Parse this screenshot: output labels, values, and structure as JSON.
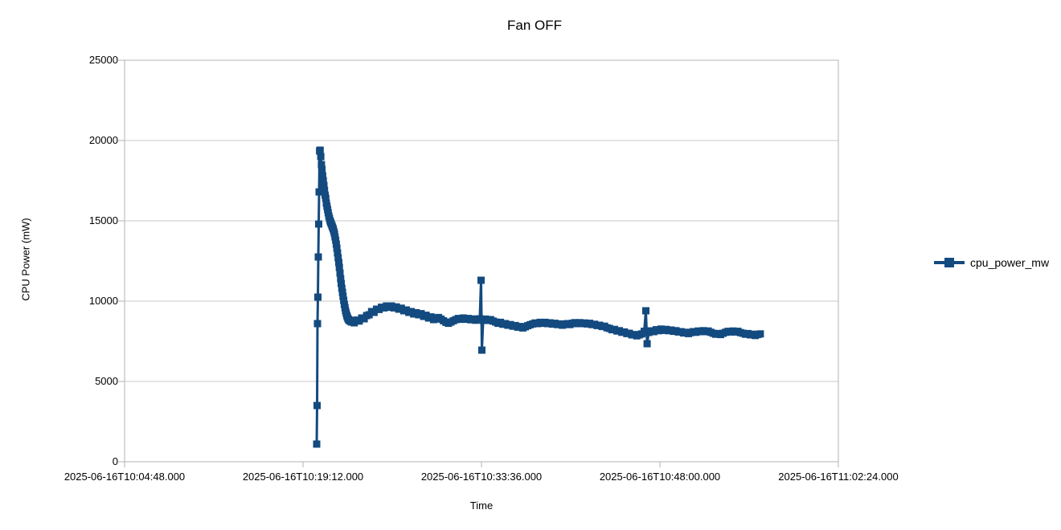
{
  "chart": {
    "title": "Fan OFF",
    "ylabel": "CPU Power (mW)",
    "xlabel": "Time",
    "legend_label": "cpu_power_mw",
    "colors": {
      "series": "#134a7f",
      "grid": "#c9c9c9",
      "axis": "#b3b3b3",
      "text": "#000000",
      "background": "#ffffff"
    }
  },
  "chart_data": {
    "type": "line",
    "title": "Fan OFF",
    "xlabel": "Time",
    "ylabel": "CPU Power (mW)",
    "legend": [
      "cpu_power_mw"
    ],
    "legend_position": "right",
    "marker": "square",
    "grid": "horizontal",
    "series_color": "#134a7f",
    "ylim": [
      0,
      25000
    ],
    "y_ticks": [
      0,
      5000,
      10000,
      15000,
      20000,
      25000
    ],
    "x_base_time": "2025-06-16T10:04:48.000",
    "x_tick_offsets_seconds": [
      0,
      864,
      1728,
      2592,
      3456
    ],
    "x_tick_labels": [
      "2025-06-16T10:04:48.000",
      "2025-06-16T10:19:12.000",
      "2025-06-16T10:33:36.000",
      "2025-06-16T10:48:00.000",
      "2025-06-16T11:02:24.000"
    ],
    "points_format": "[seconds_after_base_time, cpu_power_mw]",
    "points": [
      [
        930,
        1100
      ],
      [
        932,
        3500
      ],
      [
        934,
        8600
      ],
      [
        936,
        10250
      ],
      [
        938,
        12750
      ],
      [
        940,
        14800
      ],
      [
        942,
        16800
      ],
      [
        944,
        19350
      ],
      [
        947,
        19400
      ],
      [
        950,
        19000
      ],
      [
        953,
        18500
      ],
      [
        956,
        18200
      ],
      [
        959,
        17800
      ],
      [
        962,
        17500
      ],
      [
        965,
        17200
      ],
      [
        968,
        16900
      ],
      [
        971,
        16600
      ],
      [
        974,
        16400
      ],
      [
        977,
        16100
      ],
      [
        980,
        15900
      ],
      [
        983,
        15700
      ],
      [
        986,
        15500
      ],
      [
        989,
        15300
      ],
      [
        992,
        15150
      ],
      [
        995,
        15000
      ],
      [
        998,
        14900
      ],
      [
        1001,
        14800
      ],
      [
        1004,
        14700
      ],
      [
        1007,
        14600
      ],
      [
        1010,
        14500
      ],
      [
        1013,
        14350
      ],
      [
        1016,
        14200
      ],
      [
        1019,
        14000
      ],
      [
        1022,
        13800
      ],
      [
        1025,
        13550
      ],
      [
        1028,
        13300
      ],
      [
        1031,
        13000
      ],
      [
        1034,
        12700
      ],
      [
        1037,
        12400
      ],
      [
        1040,
        12100
      ],
      [
        1043,
        11750
      ],
      [
        1046,
        11400
      ],
      [
        1049,
        11100
      ],
      [
        1052,
        10800
      ],
      [
        1055,
        10550
      ],
      [
        1058,
        10300
      ],
      [
        1061,
        10050
      ],
      [
        1064,
        9800
      ],
      [
        1067,
        9600
      ],
      [
        1070,
        9400
      ],
      [
        1073,
        9250
      ],
      [
        1076,
        9100
      ],
      [
        1079,
        9000
      ],
      [
        1082,
        8900
      ],
      [
        1085,
        8850
      ],
      [
        1088,
        8800
      ],
      [
        1091,
        8780
      ],
      [
        1094,
        8760
      ],
      [
        1097,
        8730
      ],
      [
        1100,
        8700
      ],
      [
        1112,
        8650
      ],
      [
        1124,
        8820
      ],
      [
        1136,
        8760
      ],
      [
        1148,
        8950
      ],
      [
        1160,
        8900
      ],
      [
        1172,
        9100
      ],
      [
        1184,
        9150
      ],
      [
        1196,
        9350
      ],
      [
        1208,
        9300
      ],
      [
        1220,
        9500
      ],
      [
        1232,
        9480
      ],
      [
        1244,
        9620
      ],
      [
        1256,
        9580
      ],
      [
        1268,
        9700
      ],
      [
        1280,
        9620
      ],
      [
        1292,
        9700
      ],
      [
        1304,
        9580
      ],
      [
        1316,
        9640
      ],
      [
        1328,
        9500
      ],
      [
        1340,
        9560
      ],
      [
        1352,
        9400
      ],
      [
        1364,
        9450
      ],
      [
        1376,
        9300
      ],
      [
        1388,
        9350
      ],
      [
        1400,
        9200
      ],
      [
        1412,
        9280
      ],
      [
        1424,
        9150
      ],
      [
        1436,
        9220
      ],
      [
        1448,
        9050
      ],
      [
        1460,
        9120
      ],
      [
        1472,
        8950
      ],
      [
        1484,
        9020
      ],
      [
        1496,
        8850
      ],
      [
        1508,
        8920
      ],
      [
        1520,
        8980
      ],
      [
        1532,
        8880
      ],
      [
        1544,
        8780
      ],
      [
        1556,
        8680
      ],
      [
        1568,
        8620
      ],
      [
        1580,
        8700
      ],
      [
        1592,
        8780
      ],
      [
        1604,
        8850
      ],
      [
        1616,
        8920
      ],
      [
        1628,
        8870
      ],
      [
        1640,
        8950
      ],
      [
        1652,
        8870
      ],
      [
        1664,
        8920
      ],
      [
        1676,
        8840
      ],
      [
        1688,
        8890
      ],
      [
        1700,
        8810
      ],
      [
        1712,
        8870
      ],
      [
        1720,
        8900
      ],
      [
        1726,
        11300
      ],
      [
        1730,
        6950
      ],
      [
        1736,
        8800
      ],
      [
        1748,
        8880
      ],
      [
        1760,
        8800
      ],
      [
        1772,
        8850
      ],
      [
        1784,
        8760
      ],
      [
        1796,
        8700
      ],
      [
        1808,
        8620
      ],
      [
        1820,
        8680
      ],
      [
        1832,
        8560
      ],
      [
        1844,
        8600
      ],
      [
        1856,
        8500
      ],
      [
        1868,
        8540
      ],
      [
        1880,
        8440
      ],
      [
        1892,
        8480
      ],
      [
        1904,
        8380
      ],
      [
        1916,
        8420
      ],
      [
        1928,
        8330
      ],
      [
        1940,
        8400
      ],
      [
        1952,
        8470
      ],
      [
        1964,
        8530
      ],
      [
        1976,
        8580
      ],
      [
        1988,
        8640
      ],
      [
        2000,
        8600
      ],
      [
        2012,
        8680
      ],
      [
        2024,
        8620
      ],
      [
        2036,
        8680
      ],
      [
        2048,
        8600
      ],
      [
        2060,
        8650
      ],
      [
        2072,
        8570
      ],
      [
        2084,
        8620
      ],
      [
        2096,
        8540
      ],
      [
        2108,
        8580
      ],
      [
        2120,
        8500
      ],
      [
        2132,
        8560
      ],
      [
        2144,
        8600
      ],
      [
        2156,
        8540
      ],
      [
        2168,
        8620
      ],
      [
        2180,
        8660
      ],
      [
        2192,
        8600
      ],
      [
        2204,
        8660
      ],
      [
        2216,
        8600
      ],
      [
        2228,
        8640
      ],
      [
        2240,
        8580
      ],
      [
        2252,
        8620
      ],
      [
        2264,
        8540
      ],
      [
        2276,
        8560
      ],
      [
        2288,
        8480
      ],
      [
        2300,
        8500
      ],
      [
        2312,
        8420
      ],
      [
        2324,
        8440
      ],
      [
        2336,
        8340
      ],
      [
        2348,
        8300
      ],
      [
        2360,
        8220
      ],
      [
        2372,
        8240
      ],
      [
        2384,
        8140
      ],
      [
        2396,
        8160
      ],
      [
        2408,
        8060
      ],
      [
        2420,
        8080
      ],
      [
        2432,
        7980
      ],
      [
        2444,
        8000
      ],
      [
        2456,
        7900
      ],
      [
        2468,
        7920
      ],
      [
        2480,
        7840
      ],
      [
        2492,
        7900
      ],
      [
        2504,
        7960
      ],
      [
        2516,
        8120
      ],
      [
        2524,
        9400
      ],
      [
        2530,
        7350
      ],
      [
        2538,
        8050
      ],
      [
        2550,
        8150
      ],
      [
        2562,
        8100
      ],
      [
        2574,
        8220
      ],
      [
        2586,
        8160
      ],
      [
        2598,
        8260
      ],
      [
        2610,
        8180
      ],
      [
        2622,
        8240
      ],
      [
        2634,
        8160
      ],
      [
        2646,
        8200
      ],
      [
        2658,
        8120
      ],
      [
        2670,
        8160
      ],
      [
        2682,
        8080
      ],
      [
        2694,
        8100
      ],
      [
        2706,
        8020
      ],
      [
        2718,
        8060
      ],
      [
        2730,
        7980
      ],
      [
        2742,
        8040
      ],
      [
        2754,
        8100
      ],
      [
        2766,
        8060
      ],
      [
        2778,
        8140
      ],
      [
        2790,
        8100
      ],
      [
        2802,
        8160
      ],
      [
        2814,
        8100
      ],
      [
        2826,
        8140
      ],
      [
        2838,
        8060
      ],
      [
        2850,
        8000
      ],
      [
        2862,
        7940
      ],
      [
        2874,
        7980
      ],
      [
        2886,
        7920
      ],
      [
        2898,
        8000
      ],
      [
        2910,
        8060
      ],
      [
        2922,
        8120
      ],
      [
        2934,
        8080
      ],
      [
        2946,
        8140
      ],
      [
        2958,
        8080
      ],
      [
        2970,
        8120
      ],
      [
        2982,
        8040
      ],
      [
        2994,
        8000
      ],
      [
        3006,
        7940
      ],
      [
        3018,
        7980
      ],
      [
        3030,
        7900
      ],
      [
        3042,
        7940
      ],
      [
        3054,
        7860
      ],
      [
        3066,
        7920
      ],
      [
        3078,
        7960
      ]
    ]
  }
}
